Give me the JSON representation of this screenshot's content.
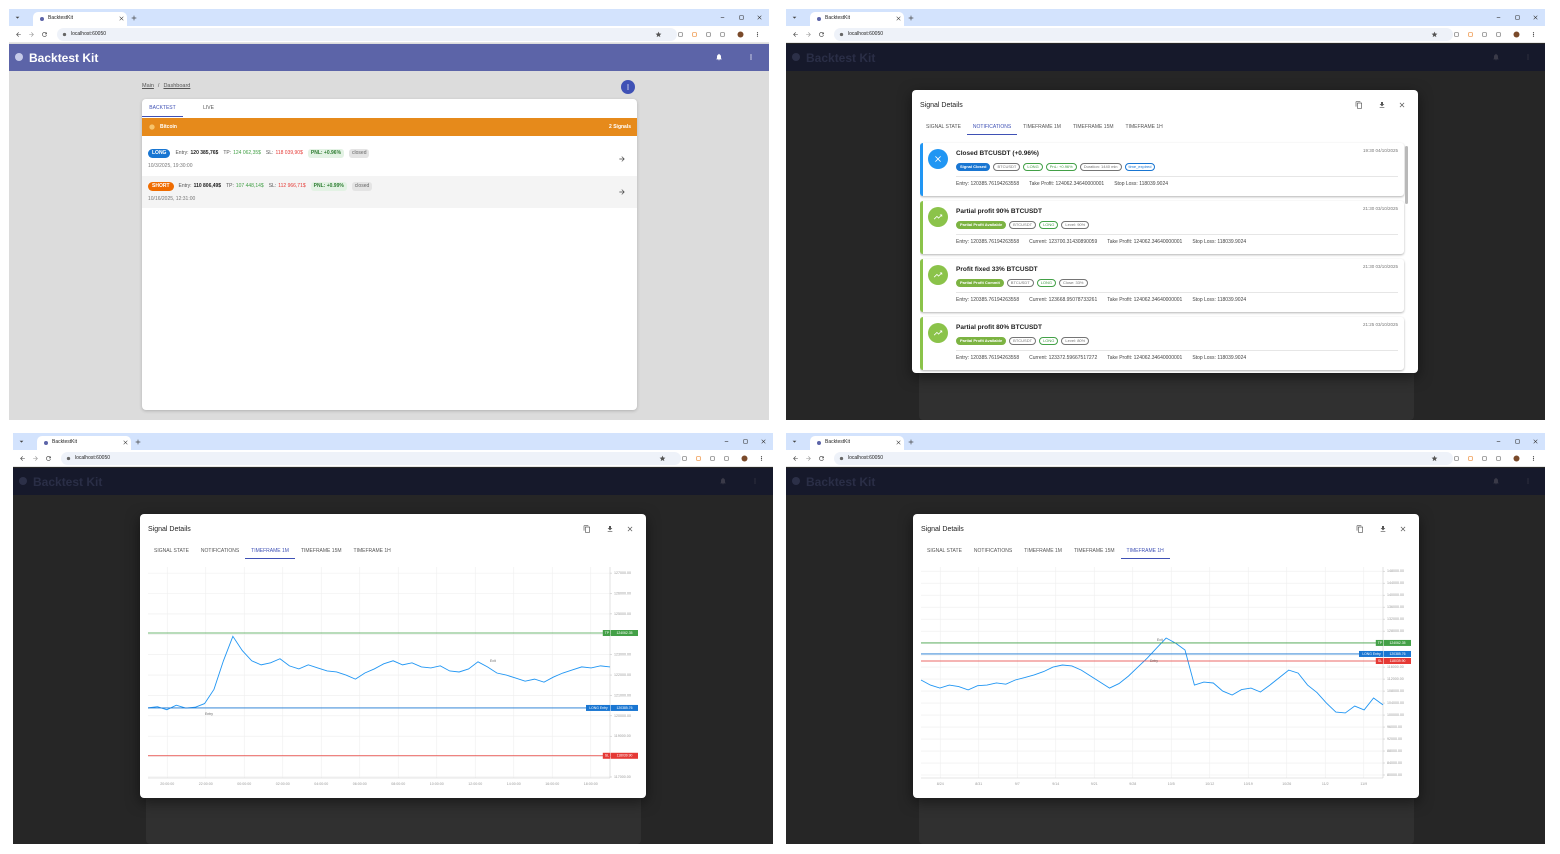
{
  "windows": [
    {
      "tab": "BacktestKit",
      "url": "localhost:60050"
    },
    {
      "tab": "BacktestKit",
      "url": "localhost:60050"
    },
    {
      "tab": "BacktestKit",
      "url": "localhost:60050"
    },
    {
      "tab": "BacktestKit",
      "url": "localhost:60050"
    }
  ],
  "app": {
    "title": "Backtest Kit"
  },
  "dashboard": {
    "breadcrumb": [
      "Main",
      "Dashboard"
    ],
    "separator": "/",
    "tabs": [
      "BACKTEST",
      "LIVE"
    ],
    "active_tab": 0,
    "group": "Bitcoin",
    "group_count": "2 Signals",
    "group_color": "#e68a1b",
    "labels": {
      "entry": "Entry:",
      "tp": "TP:",
      "sl": "SL:"
    },
    "signals": [
      {
        "side": "LONG",
        "side_color": "#1976d2",
        "entry": "120 385,76$",
        "tp": "124 062,35$",
        "sl": "118 039,90$",
        "pnl": "PNL: +0.96%",
        "status": "closed",
        "date": "10/3/2025, 19:30:00"
      },
      {
        "side": "SHORT",
        "side_color": "#ef6c00",
        "entry": "110 806,49$",
        "tp": "107 448,14$",
        "sl": "112 966,71$",
        "pnl": "PNL: +0.99%",
        "status": "closed",
        "date": "10/16/2025, 12:31:00"
      }
    ]
  },
  "dialog": {
    "title": "Signal Details",
    "tabs": [
      "SIGNAL STATE",
      "NOTIFICATIONS",
      "TIMEFRAME 1M",
      "TIMEFRAME 15M",
      "TIMEFRAME 1H"
    ]
  },
  "notifications_view": {
    "active_tab": 1,
    "items": [
      {
        "title": "Closed BTCUSDT (+0.96%)",
        "time": "19:30 04/10/2025",
        "color": "#2196f3",
        "icon": "close",
        "chips": [
          {
            "text": "Signal Closed",
            "color": "#1976d2",
            "filled": true
          },
          {
            "text": "BTCUSDT",
            "color": "#757575",
            "filled": false
          },
          {
            "text": "LONG",
            "color": "#43a047",
            "filled": false
          },
          {
            "text": "PnL: +0.96%",
            "color": "#43a047",
            "filled": false
          },
          {
            "text": "Duration: 1440 min",
            "color": "#757575",
            "filled": false
          },
          {
            "text": "time_expired",
            "color": "#1976d2",
            "filled": false
          }
        ],
        "fields": [
          "Entry: 120385.76194263558",
          "Take Profit: 124062.34640000001",
          "Stop Loss: 118039.9024"
        ]
      },
      {
        "title": "Partial profit 90% BTCUSDT",
        "time": "21:30 03/10/2025",
        "color": "#8bc34a",
        "icon": "trend",
        "chips": [
          {
            "text": "Partial Profit Available",
            "color": "#7cb342",
            "filled": true
          },
          {
            "text": "BTCUSDT",
            "color": "#757575",
            "filled": false
          },
          {
            "text": "LONG",
            "color": "#43a047",
            "filled": false
          },
          {
            "text": "Level: 90%",
            "color": "#757575",
            "filled": false
          }
        ],
        "fields": [
          "Entry: 120385.76194263558",
          "Current: 123700.31430890059",
          "Take Profit: 124062.34640000001",
          "Stop Loss: 118039.9024"
        ]
      },
      {
        "title": "Profit fixed 33% BTCUSDT",
        "time": "21:30 03/10/2025",
        "color": "#8bc34a",
        "icon": "trend",
        "chips": [
          {
            "text": "Partial Profit Commit",
            "color": "#7cb342",
            "filled": true
          },
          {
            "text": "BTCUSDT",
            "color": "#757575",
            "filled": false
          },
          {
            "text": "LONG",
            "color": "#43a047",
            "filled": false
          },
          {
            "text": "Close: 33%",
            "color": "#757575",
            "filled": false
          }
        ],
        "fields": [
          "Entry: 120385.76194263558",
          "Current: 123668.95078733261",
          "Take Profit: 124062.34640000001",
          "Stop Loss: 118039.9024"
        ]
      },
      {
        "title": "Partial profit 80% BTCUSDT",
        "time": "21:25 03/10/2025",
        "color": "#8bc34a",
        "icon": "trend",
        "chips": [
          {
            "text": "Partial Profit Available",
            "color": "#7cb342",
            "filled": true
          },
          {
            "text": "BTCUSDT",
            "color": "#757575",
            "filled": false
          },
          {
            "text": "LONG",
            "color": "#43a047",
            "filled": false
          },
          {
            "text": "Level: 80%",
            "color": "#757575",
            "filled": false
          }
        ],
        "fields": [
          "Entry: 120385.76194263558",
          "Current: 123372.59667517272",
          "Take Profit: 124062.34640000001",
          "Stop Loss: 118039.9024"
        ]
      }
    ]
  },
  "charts": [
    {
      "type": "line",
      "active_tab": 2,
      "grid": true,
      "line_color": "#2196f3",
      "ylim": [
        116950,
        127300
      ],
      "yticks": [
        {
          "value": 117000,
          "label": "117000.00"
        },
        {
          "value": 118000,
          "label": "118000.00"
        },
        {
          "value": 119000,
          "label": "119000.00"
        },
        {
          "value": 120000,
          "label": "120000.00"
        },
        {
          "value": 121000,
          "label": "121000.00"
        },
        {
          "value": 122000,
          "label": "122000.00"
        },
        {
          "value": 123000,
          "label": "123000.00"
        },
        {
          "value": 124000,
          "label": "124000.00"
        },
        {
          "value": 125000,
          "label": "125000.00"
        },
        {
          "value": 126000,
          "label": "126000.00"
        },
        {
          "value": 127000,
          "label": "127000.00"
        }
      ],
      "xticks": [
        "20:00:00",
        "22:00:00",
        "00:00:00",
        "02:00:00",
        "04:00:00",
        "06:00:00",
        "08:00:00",
        "10:00:00",
        "12:00:00",
        "14:00:00",
        "16:00:00",
        "18:00:00"
      ],
      "price": [
        120390,
        120450,
        120300,
        120520,
        120380,
        120420,
        120600,
        121300,
        122700,
        123900,
        123200,
        122700,
        122500,
        122600,
        122800,
        122450,
        122300,
        122500,
        122350,
        122200,
        122150,
        122000,
        121800,
        122100,
        122300,
        122550,
        122700,
        122500,
        122600,
        122400,
        122350,
        122450,
        122200,
        122150,
        122300,
        122650,
        122400,
        122100,
        122000,
        121850,
        121700,
        121800,
        121650,
        121900,
        122100,
        122250,
        122400,
        122350,
        122450,
        122400
      ],
      "levels": [
        {
          "name": "TP",
          "value": 124062.35,
          "label": "124062.35",
          "color": "#43a047"
        },
        {
          "name": "LONG Entry",
          "value": 120385.76,
          "label": "120385.76",
          "color": "#1976d2"
        },
        {
          "name": "SL",
          "value": 118039.9,
          "label": "118039.90",
          "color": "#e53935"
        }
      ],
      "markers": [
        "Entry",
        "Exit"
      ]
    },
    {
      "type": "line",
      "active_tab": 4,
      "grid": true,
      "line_color": "#2196f3",
      "ylim": [
        79000,
        149400
      ],
      "yticks": [
        {
          "value": 80000,
          "label": "80000.00"
        },
        {
          "value": 84000,
          "label": "84000.00"
        },
        {
          "value": 88000,
          "label": "88000.00"
        },
        {
          "value": 92000,
          "label": "92000.00"
        },
        {
          "value": 96000,
          "label": "96000.00"
        },
        {
          "value": 100000,
          "label": "100000.00"
        },
        {
          "value": 104000,
          "label": "104000.00"
        },
        {
          "value": 108000,
          "label": "108000.00"
        },
        {
          "value": 112000,
          "label": "112000.00"
        },
        {
          "value": 116000,
          "label": "116000.00"
        },
        {
          "value": 120000,
          "label": "120000.00"
        },
        {
          "value": 124000,
          "label": "124000.00"
        },
        {
          "value": 128000,
          "label": "128000.00"
        },
        {
          "value": 132000,
          "label": "132000.00"
        },
        {
          "value": 136000,
          "label": "136000.00"
        },
        {
          "value": 140000,
          "label": "140000.00"
        },
        {
          "value": 144000,
          "label": "144000.00"
        },
        {
          "value": 148000,
          "label": "148000.00"
        }
      ],
      "xticks": [
        "8/24",
        "8/31",
        "9/7",
        "9/14",
        "9/21",
        "9/28",
        "10/5",
        "10/12",
        "10/19",
        "10/26",
        "11/2",
        "11/9"
      ],
      "price": [
        111700,
        110000,
        109000,
        110000,
        109500,
        108400,
        109800,
        110000,
        110700,
        110300,
        111700,
        112500,
        113400,
        114500,
        116000,
        116700,
        116400,
        115000,
        113000,
        111000,
        109000,
        110500,
        113000,
        116000,
        119000,
        122400,
        125700,
        124000,
        121700,
        110000,
        111000,
        110700,
        108000,
        106700,
        108500,
        109000,
        107700,
        110000,
        112500,
        115000,
        114000,
        110000,
        107500,
        104000,
        101000,
        100700,
        103000,
        101700,
        105700,
        103400
      ],
      "levels": [
        {
          "name": "TP",
          "value": 124062.35,
          "label": "124062.35",
          "color": "#43a047"
        },
        {
          "name": "LONG Entry",
          "value": 120385.76,
          "label": "120385.76",
          "color": "#1976d2"
        },
        {
          "name": "SL",
          "value": 118039.9,
          "label": "118039.90",
          "color": "#e53935"
        }
      ],
      "markers": [
        "Entry",
        "Exit"
      ]
    }
  ]
}
